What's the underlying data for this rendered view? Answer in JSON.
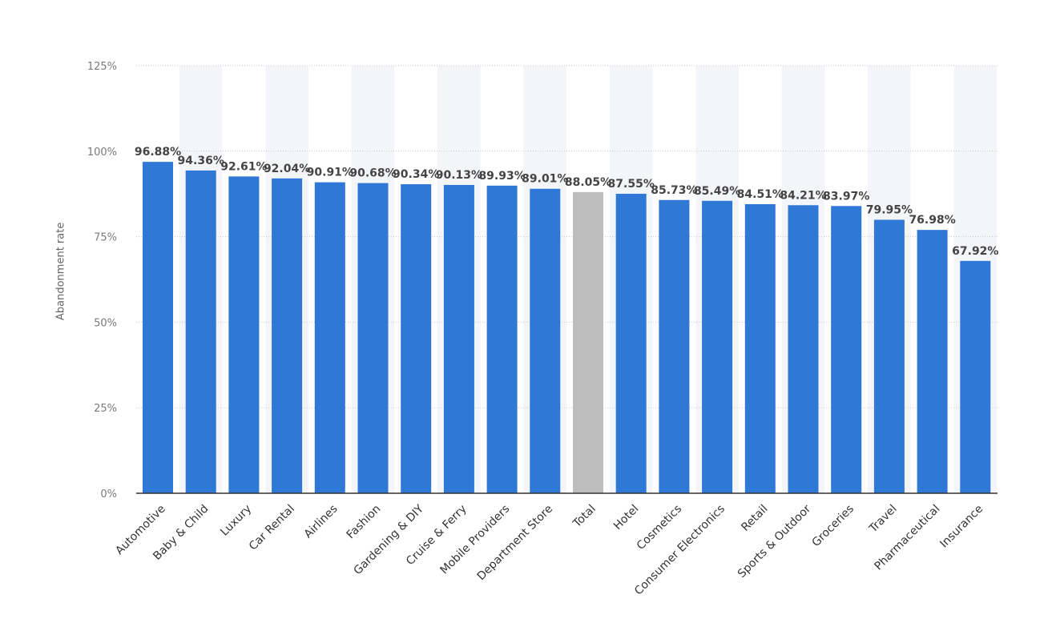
{
  "chart_data": {
    "type": "bar",
    "title": "",
    "xlabel": "",
    "ylabel": "Abandonment rate",
    "ylim": [
      0,
      125
    ],
    "yticks": [
      0,
      25,
      50,
      75,
      100,
      125
    ],
    "ytick_labels": [
      "0%",
      "25%",
      "50%",
      "75%",
      "100%",
      "125%"
    ],
    "grid": true,
    "legend": "none",
    "colors": {
      "bar": "#2f78d6",
      "highlight": "#bdbdbd",
      "band": "#f4f5f8",
      "grid": "#c8c8c8",
      "axis": "#333333"
    },
    "highlight_category": "Total",
    "categories": [
      "Automotive",
      "Baby & Child",
      "Luxury",
      "Car Rental",
      "Airlines",
      "Fashion",
      "Gardening & DIY",
      "Cruise & Ferry",
      "Mobile Providers",
      "Department Store",
      "Total",
      "Hotel",
      "Cosmetics",
      "Consumer Electronics",
      "Retail",
      "Sports & Outdoor",
      "Groceries",
      "Travel",
      "Pharmaceutical",
      "Insurance"
    ],
    "values": [
      96.88,
      94.36,
      92.61,
      92.04,
      90.91,
      90.68,
      90.34,
      90.13,
      89.93,
      89.01,
      88.05,
      87.55,
      85.73,
      85.49,
      84.51,
      84.21,
      83.97,
      79.95,
      76.98,
      67.92
    ],
    "value_labels": [
      "96.88%",
      "94.36%",
      "92.61%",
      "92.04%",
      "90.91%",
      "90.68%",
      "90.34%",
      "90.13%",
      "89.93%",
      "89.01%",
      "88.05%",
      "87.55%",
      "85.73%",
      "85.49%",
      "84.51%",
      "84.21%",
      "83.97%",
      "79.95%",
      "76.98%",
      "67.92%"
    ]
  }
}
